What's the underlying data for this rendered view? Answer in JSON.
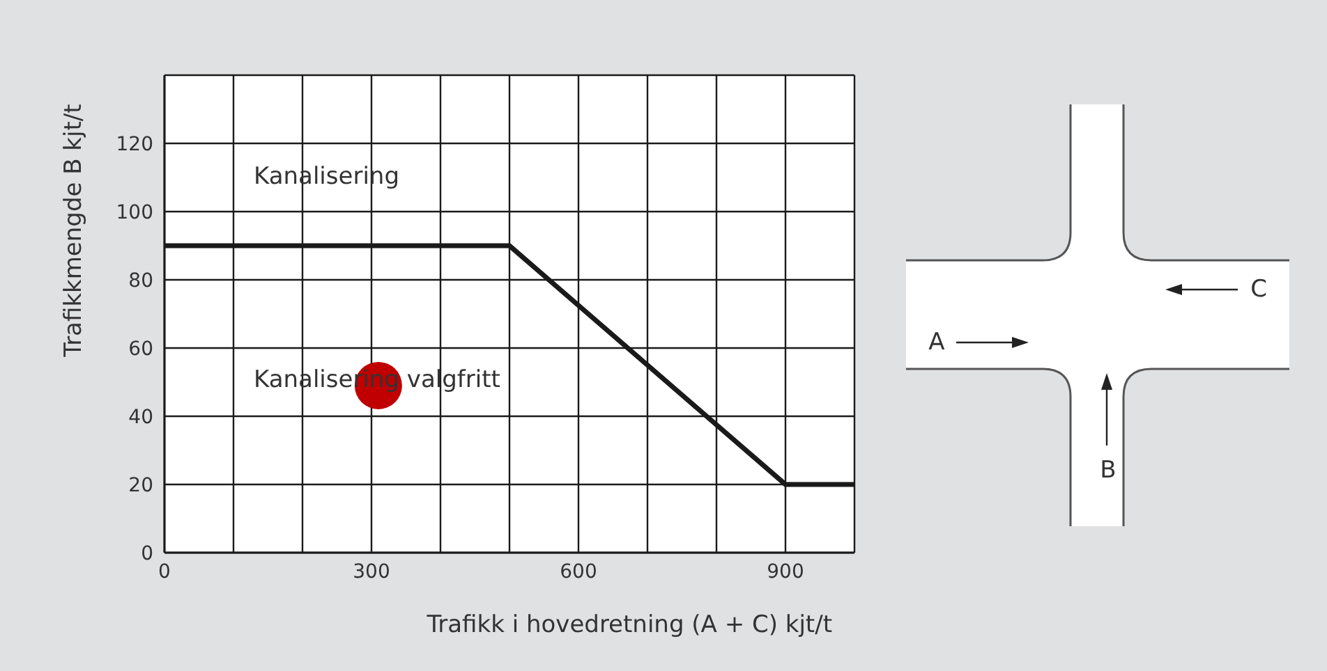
{
  "chart_data": {
    "type": "line",
    "xlabel": "Trafikk i hovedretning (A + C) kjt/t",
    "ylabel": "Trafikkmengde B kjt/t",
    "xlim": [
      0,
      1000
    ],
    "xticks": [
      0,
      {
        "value": 100,
        "label": null
      },
      {
        "value": 200,
        "label": null
      },
      300,
      {
        "value": 400,
        "label": null
      },
      {
        "value": 500,
        "label": null
      },
      600,
      {
        "value": 700,
        "label": null
      },
      {
        "value": 800,
        "label": null
      },
      900,
      {
        "value": 1000,
        "label": null
      }
    ],
    "ylim": [
      0,
      140
    ],
    "yticks": [
      0,
      20,
      40,
      60,
      80,
      100,
      120,
      {
        "value": 140,
        "label": null
      }
    ],
    "grid": true,
    "series": [
      {
        "x": [
          0,
          500,
          900,
          1000
        ],
        "values": [
          90,
          90,
          20,
          20
        ],
        "color": "#1a1a1a"
      },
      {
        "type": "scatter",
        "x": [
          310
        ],
        "values": [
          49
        ],
        "color": "#c00000"
      }
    ],
    "annotations": [
      "Kanalisering",
      "Kanalisering valgfritt",
      "A",
      "B",
      "C"
    ]
  }
}
